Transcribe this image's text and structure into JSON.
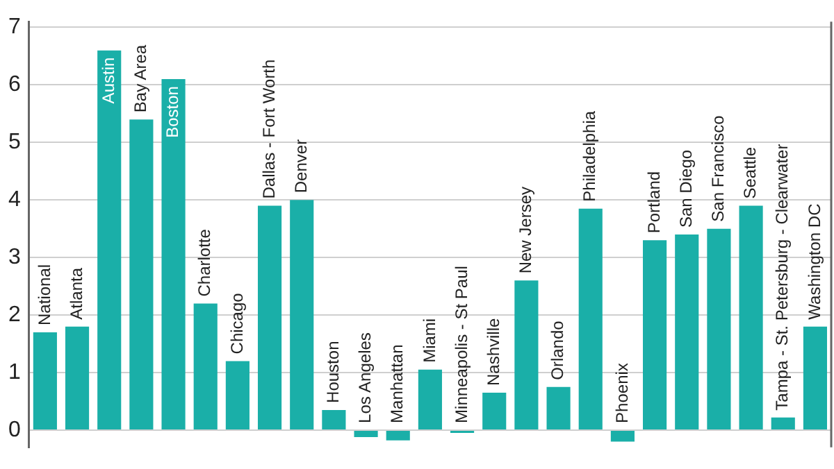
{
  "chart_data": {
    "type": "bar",
    "categories": [
      "National",
      "Atlanta",
      "Austin",
      "Bay Area",
      "Boston",
      "Charlotte",
      "Chicago",
      "Dallas - Fort Worth",
      "Denver",
      "Houston",
      "Los Angeles",
      "Manhattan",
      "Miami",
      "Minneapolis - St Paul",
      "Nashville",
      "New Jersey",
      "Orlando",
      "Philadelphia",
      "Phoenix",
      "Portland",
      "San Diego",
      "San Francisco",
      "Seattle",
      "Tampa - St. Petersburg - Clearwater",
      "Washington DC"
    ],
    "values": [
      1.7,
      1.8,
      6.6,
      5.4,
      6.1,
      2.2,
      1.2,
      3.9,
      4.0,
      0.35,
      -0.12,
      -0.18,
      1.05,
      -0.05,
      0.65,
      2.6,
      0.75,
      3.85,
      -0.2,
      3.3,
      3.4,
      3.5,
      3.9,
      0.22,
      1.8
    ],
    "color": "#1aafa8",
    "ylim": [
      -0.3,
      7.1
    ],
    "yticks": [
      0,
      1,
      2,
      3,
      4,
      5,
      6,
      7
    ],
    "grid": "y",
    "legend": false
  }
}
